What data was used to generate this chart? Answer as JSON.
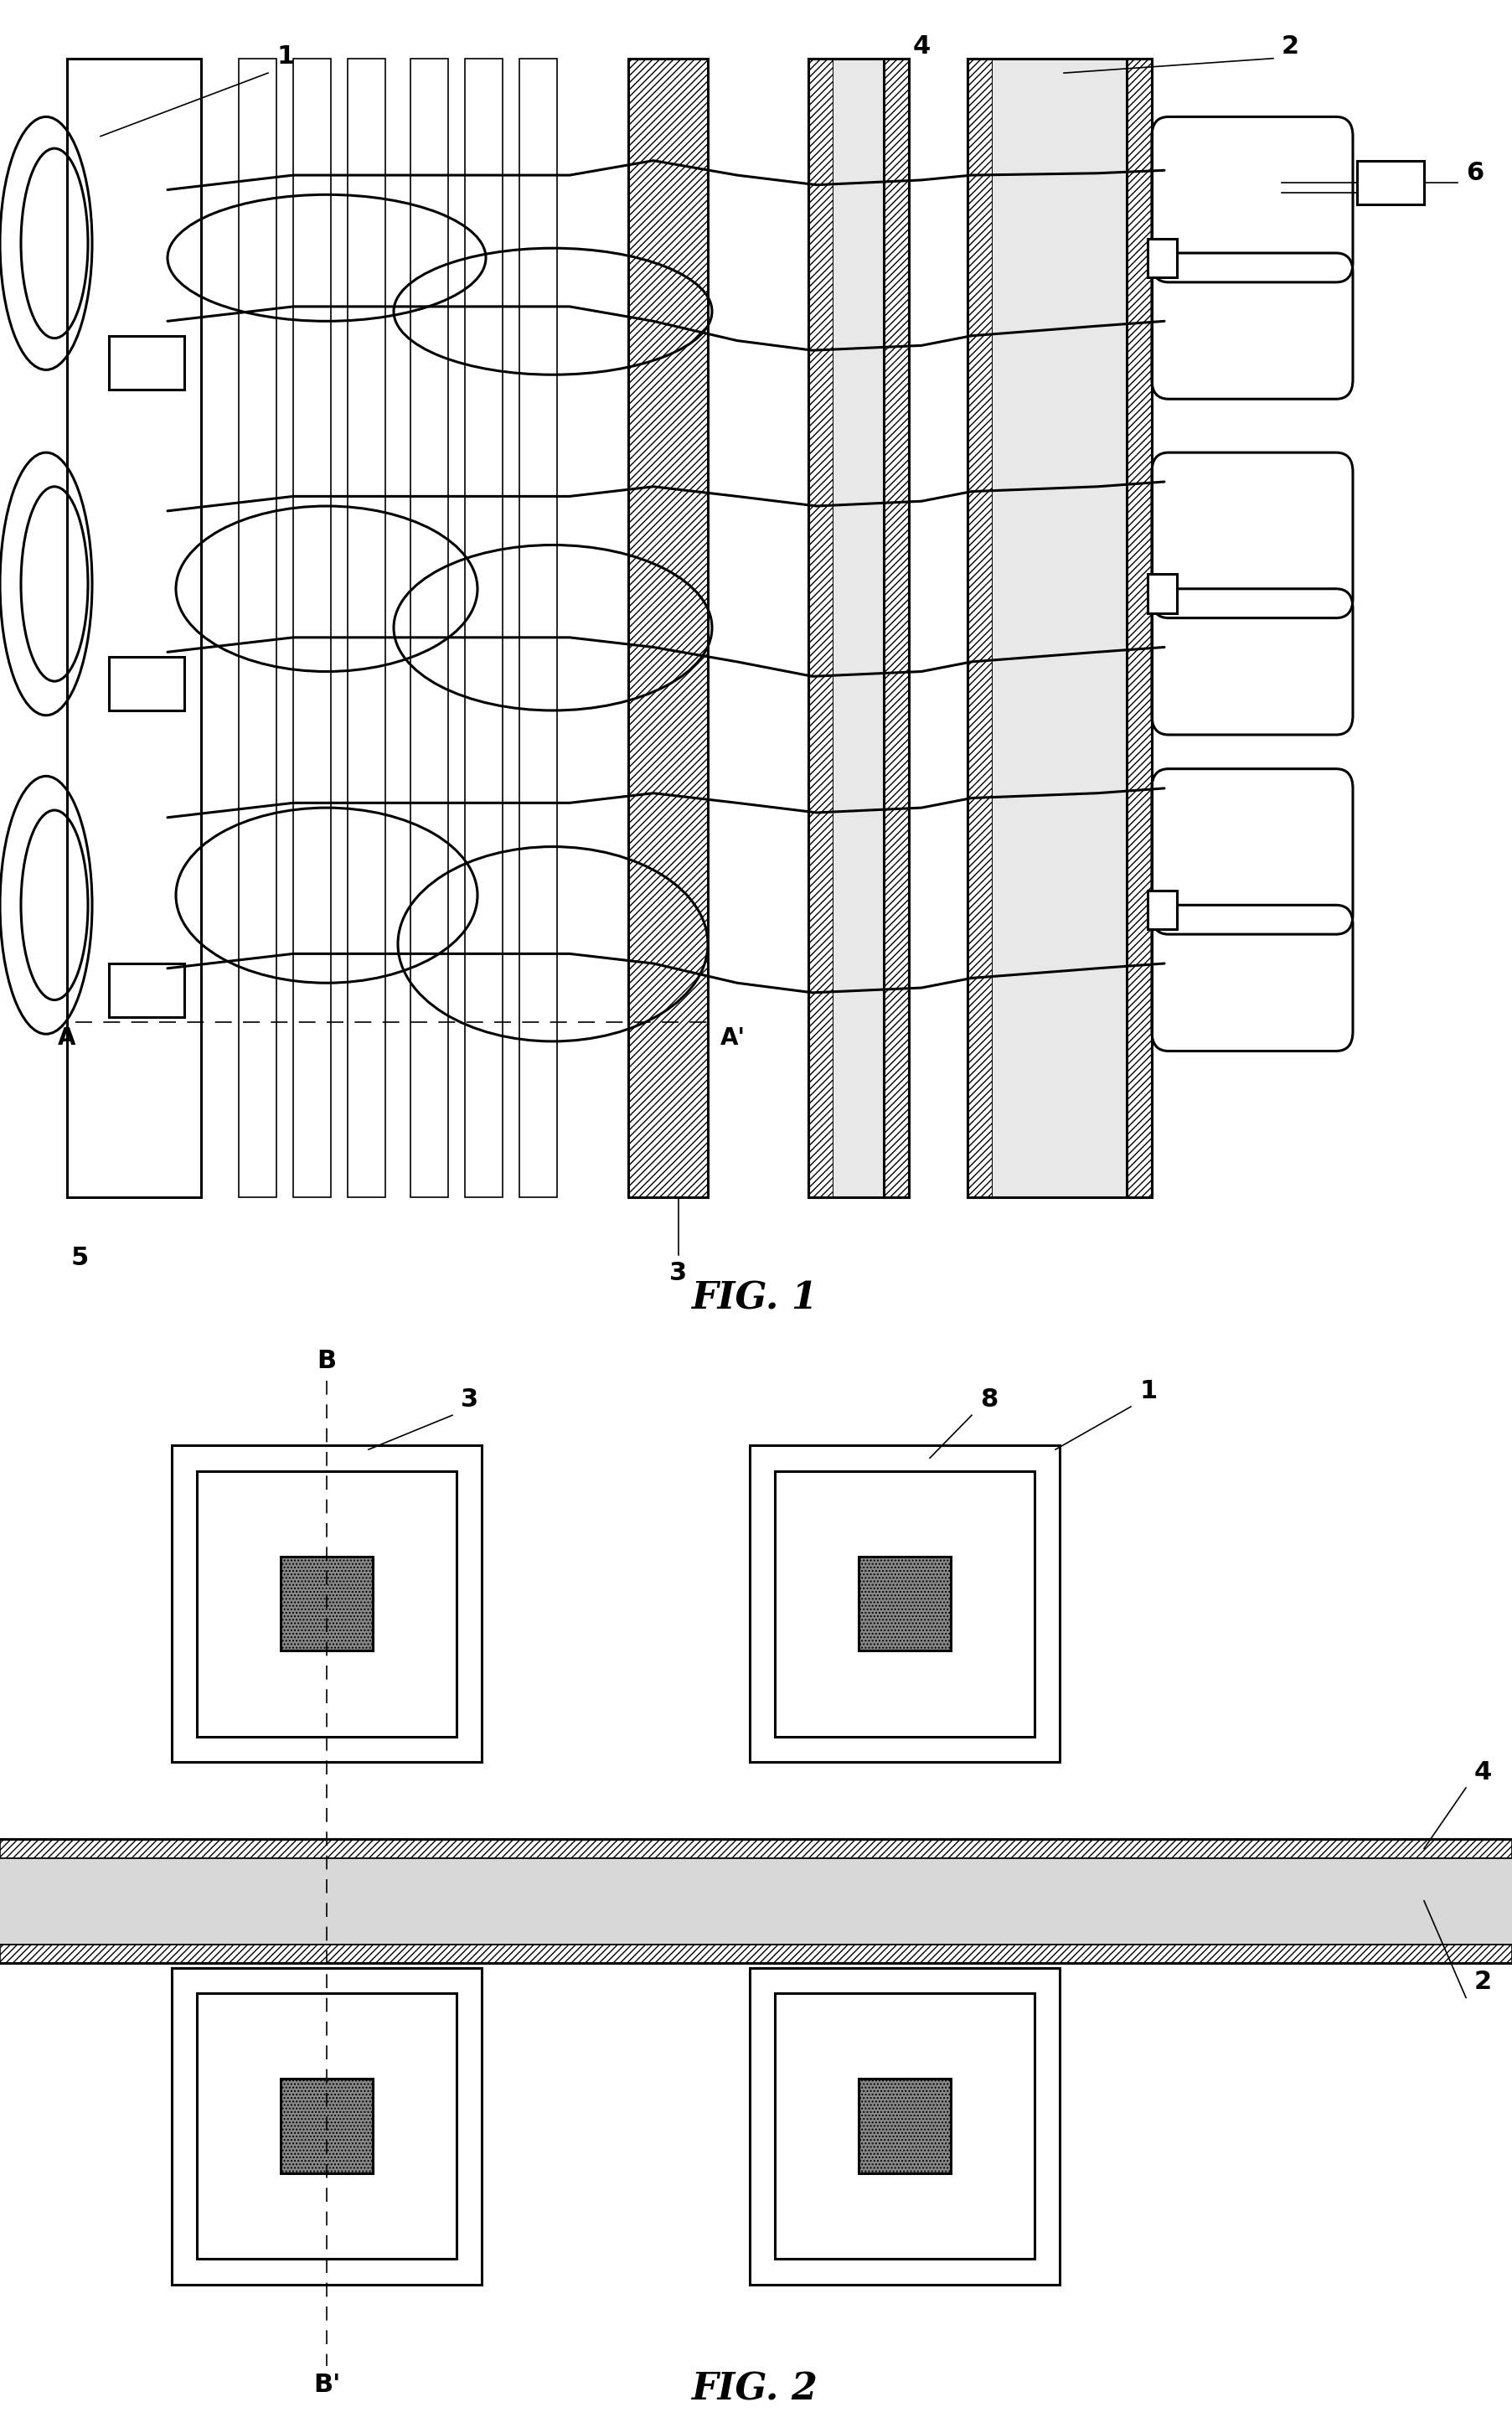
{
  "fig1_label": "FIG. 1",
  "fig2_label": "FIG. 2",
  "background": "#ffffff",
  "lc": "#000000",
  "gray_hatch": "#c8c8c8",
  "dark_gray": "#686868",
  "label1": "1",
  "label2": "2",
  "label3": "3",
  "label4": "4",
  "label5": "5",
  "label6": "6",
  "label8": "8",
  "labelA": "A",
  "labelAp": "A'",
  "labelB": "B",
  "labelBp": "B'"
}
